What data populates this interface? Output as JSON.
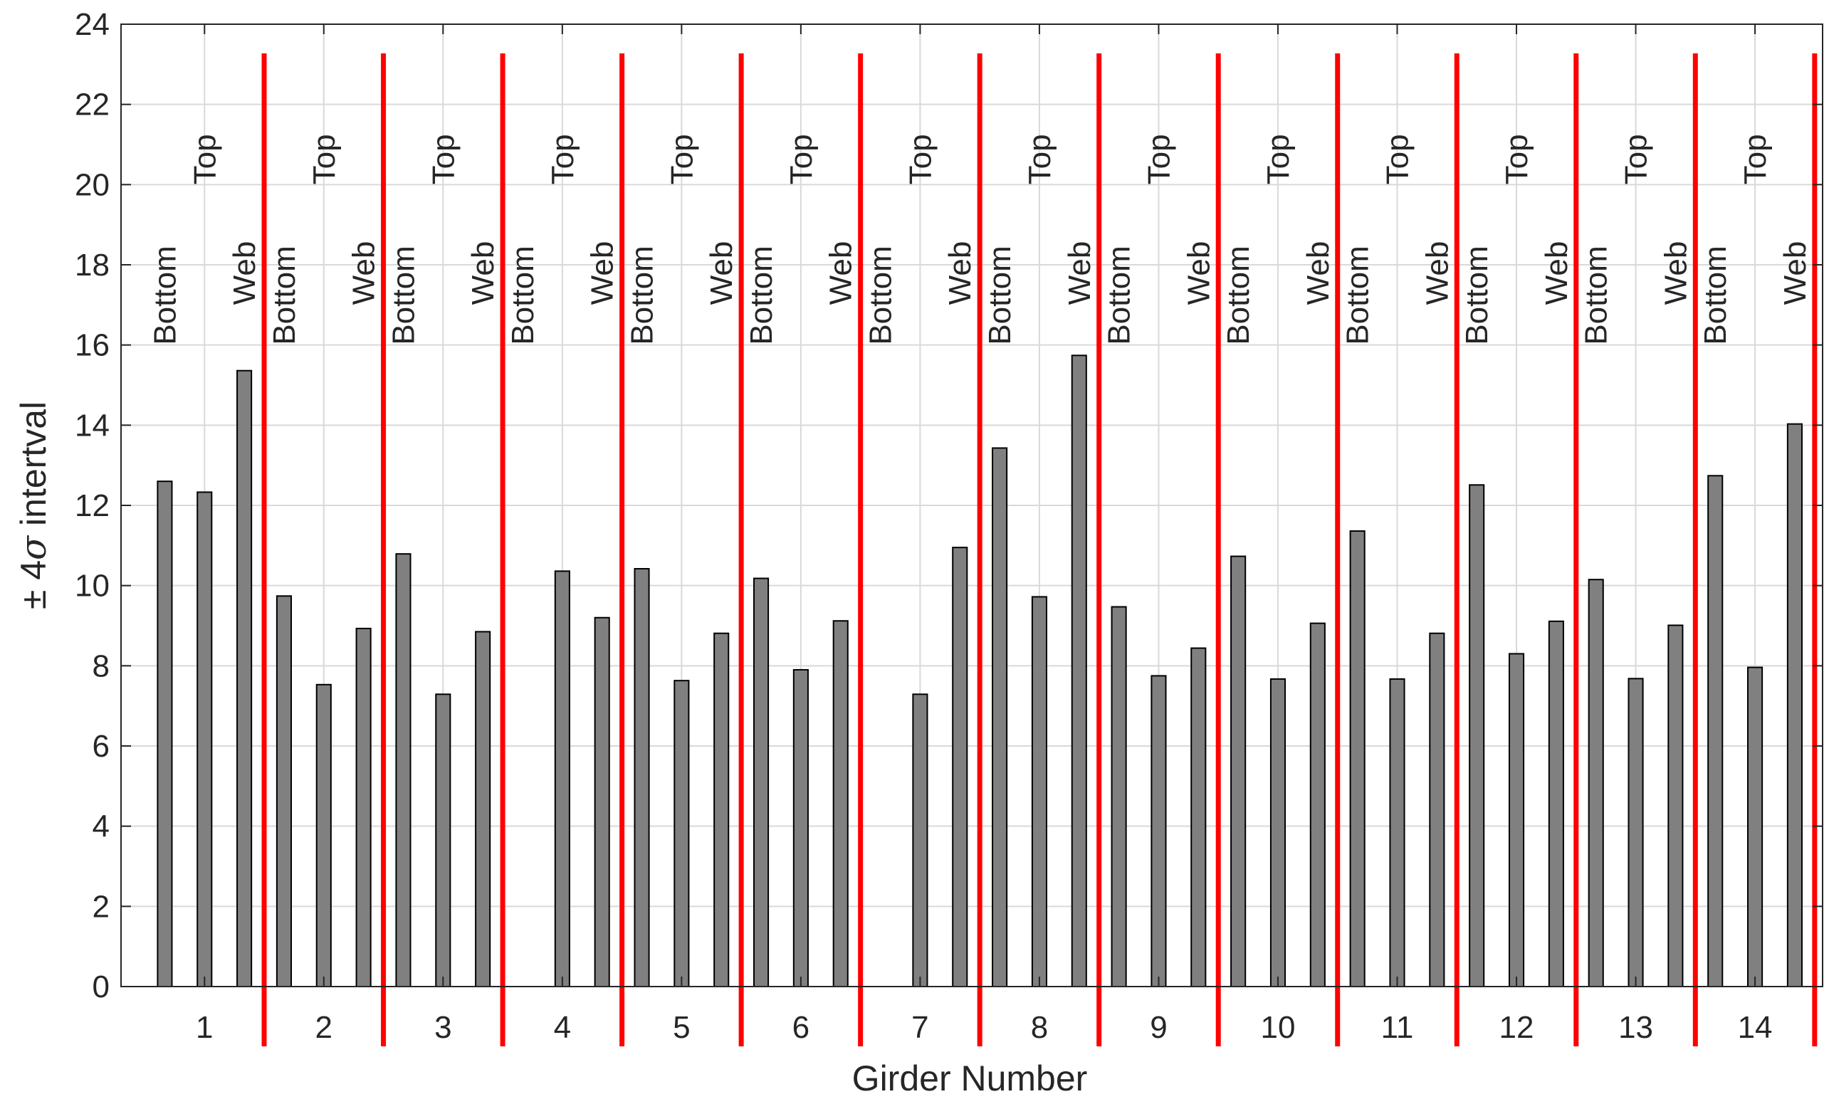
{
  "chart_data": {
    "type": "bar",
    "xlabel": "Girder Number",
    "ylabel_prefix": "± 4",
    "ylabel_symbol": "σ",
    "ylabel_suffix": " intertval",
    "ylim": [
      0,
      24
    ],
    "yticks": [
      "0",
      "2",
      "4",
      "6",
      "8",
      "10",
      "12",
      "14",
      "16",
      "18",
      "20",
      "22",
      "24"
    ],
    "grid": true,
    "categories": [
      "1",
      "2",
      "3",
      "4",
      "5",
      "6",
      "7",
      "8",
      "9",
      "10",
      "11",
      "12",
      "13",
      "14"
    ],
    "group_labels": [
      "Bottom",
      "Top",
      "Web"
    ],
    "values": [
      [
        12.6,
        12.33,
        15.36
      ],
      [
        9.74,
        7.53,
        8.93
      ],
      [
        10.79,
        7.29,
        8.85
      ],
      [
        0,
        10.36,
        9.2
      ],
      [
        10.42,
        7.63,
        8.81
      ],
      [
        10.18,
        7.9,
        9.12
      ],
      [
        0,
        7.29,
        10.95
      ],
      [
        13.43,
        9.72,
        15.74
      ],
      [
        9.47,
        7.75,
        8.44
      ],
      [
        10.73,
        7.67,
        9.06
      ],
      [
        11.36,
        7.67,
        8.81
      ],
      [
        12.51,
        8.3,
        9.11
      ],
      [
        10.15,
        7.68,
        9.01
      ],
      [
        12.74,
        7.96,
        14.03
      ]
    ],
    "colors": {
      "bar_fill": "#808080",
      "bar_edge": "#000000",
      "separator": "#ff0000",
      "grid": "#d9d9d9",
      "axis": "#262626"
    }
  }
}
